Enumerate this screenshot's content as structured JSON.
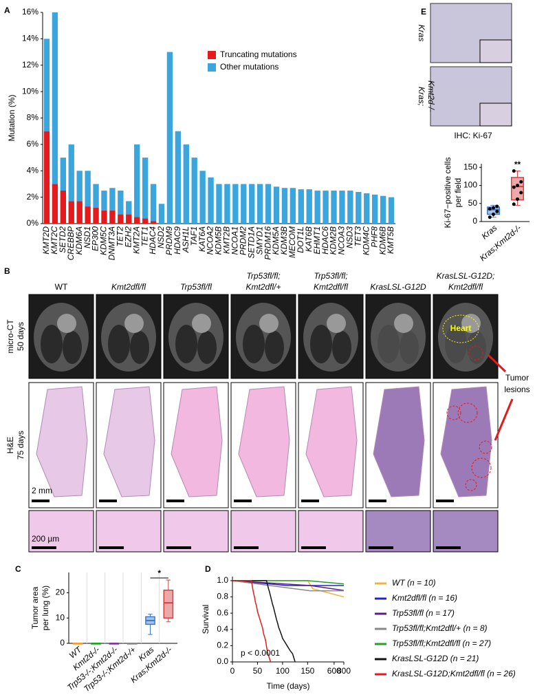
{
  "chart_data": [
    {
      "type": "bar",
      "label": "A",
      "ylabel": [
        "Mutation (%)"
      ],
      "categories": [
        "KMT2D",
        "KMT2C",
        "SETD2",
        "CREBBP",
        "KDM6A",
        "NSD1",
        "EP300",
        "KDM5C",
        "DNMT3A",
        "TET2",
        "EZH2",
        "KMT2A",
        "TET1",
        "HDAC4",
        "NSD2",
        "PRDM9",
        "HDAC9",
        "ASH1L",
        "TAF1",
        "KAT6A",
        "NCOA2",
        "KDM5B",
        "KMT2B",
        "NCOA1",
        "PRDM2",
        "SETD1A",
        "SMYD1",
        "PRDM16",
        "KDM5A",
        "KDM3B",
        "MECOM",
        "DOT1L",
        "KAT6B",
        "EHMT1",
        "HDAC6",
        "KDM2B",
        "NCOA3",
        "NSD3",
        "TET3",
        "KDM4C",
        "PHF8",
        "KDM6B",
        "KMT5B"
      ],
      "series": [
        {
          "name": "Truncating mutations",
          "color": "#e41a1c",
          "values": [
            7,
            3,
            2.5,
            1.7,
            1.7,
            1.3,
            1.2,
            1,
            1,
            0.7,
            0.7,
            0.5,
            0.4,
            0.2,
            0,
            0,
            0,
            0,
            0,
            0,
            0,
            0,
            0,
            0,
            0,
            0,
            0,
            0,
            0,
            0,
            0,
            0,
            0,
            0,
            0,
            0,
            0,
            0,
            0,
            0,
            0,
            0,
            0
          ]
        },
        {
          "name": "Other mutations",
          "color": "#3aa6dd",
          "values": [
            7,
            13,
            2.5,
            4.3,
            2.3,
            2.7,
            1.8,
            1.5,
            1.7,
            1.8,
            1,
            5.5,
            4.6,
            2.8,
            1.5,
            13,
            7,
            6,
            5,
            4,
            3.5,
            3,
            3,
            3,
            3,
            3,
            3,
            3,
            2.8,
            2.7,
            2.7,
            2.6,
            2.6,
            2.5,
            2.5,
            2.5,
            2.5,
            2.5,
            2.4,
            2.3,
            2.2,
            2.1,
            2
          ]
        }
      ],
      "ylim": [
        0,
        16
      ],
      "yticks": [
        {
          "value": 0,
          "label": "0%"
        },
        {
          "value": 2,
          "label": "2%"
        },
        {
          "value": 4,
          "label": "4%"
        },
        {
          "value": 6,
          "label": "6%"
        },
        {
          "value": 8,
          "label": "8%"
        },
        {
          "value": 10,
          "label": "10%"
        },
        {
          "value": 12,
          "label": "12%"
        },
        {
          "value": 14,
          "label": "14%"
        },
        {
          "value": 16,
          "label": "16%"
        }
      ]
    },
    {
      "type": "box",
      "label": "C",
      "ylabel": [
        "Tumor area",
        "per lung (%)"
      ],
      "categories": [
        "WT",
        "Kmt2d-/-",
        "Trp53-/-;Kmt2d-/-",
        "Trp53-/-;Kmt2d-/+",
        "Kras",
        "Kras;Kmt2d-/-"
      ],
      "boxes": [
        {
          "min": 0,
          "q1": 0,
          "median": 0,
          "q3": 0,
          "max": 0,
          "color": "#f0a030"
        },
        {
          "min": 0,
          "q1": 0,
          "median": 0,
          "q3": 0,
          "max": 0,
          "color": "#22a022"
        },
        {
          "min": 0,
          "q1": 0,
          "median": 0,
          "q3": 0,
          "max": 0,
          "color": "#7a3aa0"
        },
        {
          "min": 0,
          "q1": 0,
          "median": 0,
          "q3": 0,
          "max": 0,
          "color": "#888888"
        },
        {
          "min": 3.5,
          "q1": 7.5,
          "median": 9,
          "q3": 10.5,
          "max": 11.5,
          "color": "#3a78c8"
        },
        {
          "min": 8.5,
          "q1": 10,
          "median": 16,
          "q3": 21,
          "max": 25,
          "color": "#d84040"
        }
      ],
      "ylim": [
        0,
        28
      ],
      "yticks": [
        0,
        10,
        20
      ],
      "annotations": [
        "*"
      ]
    },
    {
      "type": "line",
      "label": "D",
      "xlabel": "Time (days)",
      "ylabel": [
        "Survival"
      ],
      "series": [
        {
          "name": "WT (n = 10)",
          "color": "#f0b43c",
          "x": [
            0,
            150,
            165,
            800
          ],
          "values": [
            1,
            1,
            0.9,
            0.8
          ]
        },
        {
          "name": "Kmt2dfl/fl (n = 16)",
          "color": "#2323c8",
          "x": [
            0,
            110,
            800
          ],
          "values": [
            1,
            0.94,
            0.94
          ]
        },
        {
          "name": "Trp53fl/fl (n = 17)",
          "color": "#5a1e8c",
          "x": [
            0,
            155,
            800
          ],
          "values": [
            1,
            0.94,
            0.88
          ]
        },
        {
          "name": "Trp53fl/fl;Kmt2dfl/+ (n = 8)",
          "color": "#888888",
          "x": [
            0,
            155,
            800
          ],
          "values": [
            1,
            0.875,
            0.875
          ]
        },
        {
          "name": "Trp53fl/fl;Kmt2dfl/fl (n = 27)",
          "color": "#22a022",
          "x": [
            0,
            150,
            800
          ],
          "values": [
            1,
            1,
            0.96
          ]
        },
        {
          "name": "KrasLSL-G12D (n = 21)",
          "color": "#111111",
          "x": [
            0,
            68,
            70,
            72,
            74,
            76,
            78,
            80,
            82,
            84,
            86,
            88,
            90,
            92,
            95,
            98,
            100,
            105,
            110,
            115,
            120,
            125
          ],
          "values": [
            1,
            1,
            0.95,
            0.9,
            0.86,
            0.81,
            0.76,
            0.71,
            0.67,
            0.62,
            0.57,
            0.52,
            0.48,
            0.43,
            0.38,
            0.33,
            0.29,
            0.24,
            0.19,
            0.14,
            0.1,
            0
          ]
        },
        {
          "name": "KrasLSL-G12D;Kmt2dfl/fl (n = 26)",
          "color": "#e41a1c",
          "x": [
            0,
            38,
            40,
            42,
            44,
            46,
            48,
            50,
            52,
            54,
            56,
            58,
            60,
            62,
            64,
            66,
            68,
            70,
            72,
            74,
            76
          ],
          "values": [
            1,
            1,
            0.92,
            0.85,
            0.8,
            0.73,
            0.69,
            0.62,
            0.58,
            0.54,
            0.5,
            0.46,
            0.42,
            0.35,
            0.31,
            0.27,
            0.19,
            0.12,
            0.08,
            0.04,
            0
          ]
        }
      ],
      "xlim": [
        0,
        800
      ],
      "xticks": [
        0,
        50,
        100,
        150,
        600,
        800
      ],
      "ylim": [
        0,
        1.05
      ],
      "yticks": [
        {
          "value": 0,
          "label": "0.0"
        },
        {
          "value": 0.2,
          "label": "0.2"
        },
        {
          "value": 0.4,
          "label": "0.4"
        },
        {
          "value": 0.6,
          "label": "0.6"
        },
        {
          "value": 0.8,
          "label": "0.8"
        },
        {
          "value": 1,
          "label": "1.0"
        }
      ],
      "annotations": [
        "p < 0.0001"
      ]
    },
    {
      "type": "box",
      "label": "E",
      "ylabel": [
        "Ki-67−positive cells",
        "per field"
      ],
      "categories": [
        "Kras",
        "Kras;Kmt2d-/-"
      ],
      "boxes": [
        {
          "min": 12,
          "q1": 20,
          "median": 33,
          "q3": 40,
          "max": 45,
          "color": "#3a78c8"
        },
        {
          "min": 45,
          "q1": 60,
          "median": 97,
          "q3": 122,
          "max": 140,
          "color": "#d84040"
        }
      ],
      "points": [
        [
          12,
          20,
          28,
          35,
          38,
          42
        ],
        [
          48,
          62,
          80,
          95,
          100,
          110,
          140
        ]
      ],
      "ylim": [
        0,
        160
      ],
      "yticks": [
        0,
        50,
        100,
        150
      ],
      "annotations": [
        "**"
      ],
      "image_labels": [
        [
          "Kras"
        ],
        [
          "Kras;",
          "Kmt2d-/-"
        ]
      ],
      "caption": "IHC: Ki-67"
    }
  ],
  "panel_b": {
    "label": "B",
    "columns": [
      [
        "WT"
      ],
      [
        "Kmt2dfl/fl"
      ],
      [
        "Trp53fl/fl"
      ],
      [
        "Trp53fl/fl;",
        "Kmt2dfl/+"
      ],
      [
        "Trp53fl/fl;",
        "Kmt2dfl/fl"
      ],
      [
        "KrasLSL-G12D"
      ],
      [
        "KrasLSL-G12D;",
        "Kmt2dfl/fl"
      ]
    ],
    "rows": [
      [
        "micro-CT",
        "50 days"
      ],
      [
        "H&E",
        "75 days"
      ]
    ],
    "heart": "Heart",
    "lesions": [
      "Tumor",
      "lesions"
    ],
    "scale_large": "2 mm",
    "scale_small": "200 µm"
  }
}
